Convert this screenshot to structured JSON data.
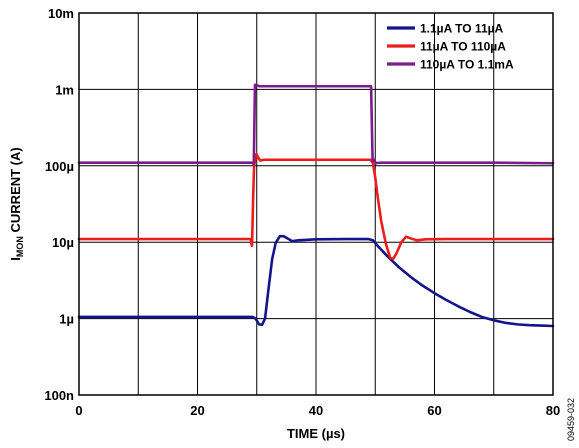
{
  "chart_data": {
    "type": "line",
    "xlabel": "TIME (µs)",
    "ylabel_main": "I",
    "ylabel_sub": "MON",
    "ylabel_rest": " CURRENT (A)",
    "figure_id": "09459-032",
    "xlim": [
      0,
      80
    ],
    "ylim": [
      1e-07,
      0.01
    ],
    "yscale": "log",
    "grid": true,
    "legend_position": "top-right",
    "x_ticks": [
      {
        "value": 0,
        "label": "0"
      },
      {
        "value": 20,
        "label": "20"
      },
      {
        "value": 40,
        "label": "40"
      },
      {
        "value": 60,
        "label": "60"
      },
      {
        "value": 80,
        "label": "80"
      }
    ],
    "y_ticks": [
      {
        "value": 1e-07,
        "label": "100n"
      },
      {
        "value": 1e-06,
        "label": "1µ"
      },
      {
        "value": 1e-05,
        "label": "10µ"
      },
      {
        "value": 0.0001,
        "label": "100µ"
      },
      {
        "value": 0.001,
        "label": "1m"
      },
      {
        "value": 0.01,
        "label": "10m"
      }
    ],
    "series": [
      {
        "name": "1.1µA TO 11µA",
        "color": "#14148c",
        "points": [
          [
            0,
            1.05e-06
          ],
          [
            29.3,
            1.05e-06
          ],
          [
            29.8,
            1e-06
          ],
          [
            30.4,
            8.4e-07
          ],
          [
            30.9,
            8.3e-07
          ],
          [
            31.4,
            1e-06
          ],
          [
            32.0,
            2.5e-06
          ],
          [
            32.6,
            6e-06
          ],
          [
            33.2,
            9.8e-06
          ],
          [
            33.9,
            1.2e-05
          ],
          [
            34.5,
            1.2e-05
          ],
          [
            35.2,
            1.12e-05
          ],
          [
            36.0,
            1.03e-05
          ],
          [
            37.0,
            1.06e-05
          ],
          [
            40,
            1.09e-05
          ],
          [
            45,
            1.1e-05
          ],
          [
            48.8,
            1.1e-05
          ],
          [
            49.6,
            1.06e-05
          ],
          [
            50.5,
            8.8e-06
          ],
          [
            52,
            6.6e-06
          ],
          [
            54,
            4.7e-06
          ],
          [
            56,
            3.5e-06
          ],
          [
            58,
            2.7e-06
          ],
          [
            60,
            2.15e-06
          ],
          [
            62,
            1.75e-06
          ],
          [
            64,
            1.45e-06
          ],
          [
            66,
            1.22e-06
          ],
          [
            68,
            1.05e-06
          ],
          [
            70,
            9.5e-07
          ],
          [
            72,
            8.8e-07
          ],
          [
            74,
            8.4e-07
          ],
          [
            76,
            8.2e-07
          ],
          [
            78,
            8.1e-07
          ],
          [
            80,
            8e-07
          ]
        ]
      },
      {
        "name": "11µA TO 110µA",
        "color": "#ee1c1c",
        "points": [
          [
            0,
            1.1e-05
          ],
          [
            29.0,
            1.1e-05
          ],
          [
            29.1,
            9.5e-06
          ],
          [
            29.2,
            9e-06
          ],
          [
            29.4,
            4e-05
          ],
          [
            29.55,
            0.0001
          ],
          [
            29.75,
            0.00012
          ],
          [
            29.95,
            0.000142
          ],
          [
            30.2,
            0.00013
          ],
          [
            30.6,
            0.000117
          ],
          [
            31.2,
            0.00012
          ],
          [
            35,
            0.00012
          ],
          [
            40,
            0.00012
          ],
          [
            45,
            0.00012
          ],
          [
            49.2,
            0.00012
          ],
          [
            49.6,
            0.00011
          ],
          [
            50.0,
            7e-05
          ],
          [
            50.4,
            4e-05
          ],
          [
            51.0,
            1.9e-05
          ],
          [
            51.8,
            9.5e-06
          ],
          [
            52.5,
            6.3e-06
          ],
          [
            53.0,
            6e-06
          ],
          [
            53.6,
            7.2e-06
          ],
          [
            54.4,
            1e-05
          ],
          [
            55.2,
            1.18e-05
          ],
          [
            56.0,
            1.12e-05
          ],
          [
            57.0,
            1.06e-05
          ],
          [
            58.5,
            1.09e-05
          ],
          [
            62,
            1.1e-05
          ],
          [
            70,
            1.1e-05
          ],
          [
            80,
            1.1e-05
          ]
        ]
      },
      {
        "name": "110µA TO 1.1mA",
        "color": "#7a1c8c",
        "points": [
          [
            0,
            0.00011
          ],
          [
            29.2,
            0.00011
          ],
          [
            29.5,
            0.000105
          ],
          [
            29.7,
            0.00115
          ],
          [
            30.5,
            0.0011
          ],
          [
            35,
            0.0011
          ],
          [
            40,
            0.0011
          ],
          [
            45,
            0.0011
          ],
          [
            49.3,
            0.0011
          ],
          [
            49.55,
            0.000115
          ],
          [
            49.8,
            0.00012
          ],
          [
            50.1,
            0.000108
          ],
          [
            50.8,
            0.00011
          ],
          [
            60,
            0.00011
          ],
          [
            70,
            0.00011
          ],
          [
            80,
            0.000108
          ]
        ]
      }
    ]
  }
}
